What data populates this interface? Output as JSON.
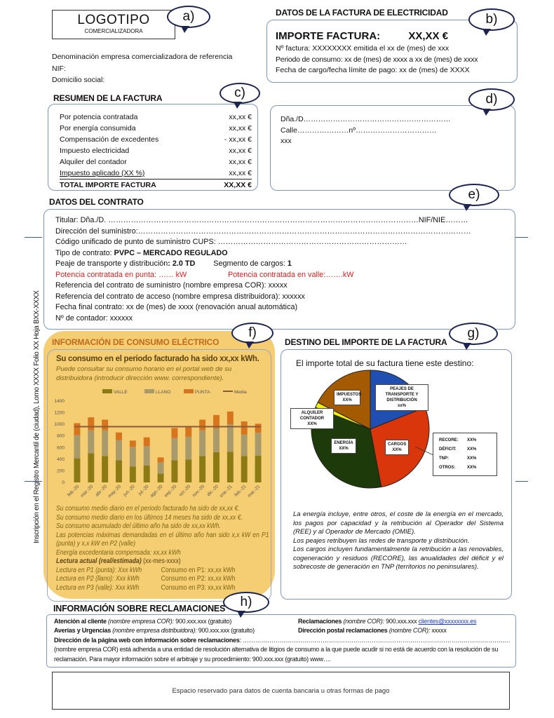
{
  "header": {
    "logo_title": "LOGOTIPO",
    "logo_subtitle": "COMERCIALIZADORA",
    "company_lines": [
      "Denominación empresa comercializadora de referencia",
      "NIF:",
      "Domicilio social:"
    ]
  },
  "callouts": [
    "a)",
    "b)",
    "c)",
    "d)",
    "e)",
    "f)",
    "g)",
    "h)"
  ],
  "invoice": {
    "section_title": "DATOS DE LA FACTURA DE ELECTRICIDAD",
    "amount_label": "IMPORTE FACTURA:",
    "amount_value": "XX,XX €",
    "lines": [
      "Nº factura: XXXXXXXX emitida el xx de (mes) de xxx",
      "Periodo de consumo: xx de (mes) de xxxx a xx de (mes) de xxxx",
      "Fecha de cargo/fecha límite de pago: xx de (mes) de XXXX"
    ]
  },
  "summary": {
    "section_title": "RESUMEN DE LA FACTURA",
    "rows": [
      {
        "label": "Por potencia contratada",
        "value": "xx,xx €"
      },
      {
        "label": "Por energía consumida",
        "value": "xx,xx €"
      },
      {
        "label": "Compensación de excedentes",
        "value": "- xx,xx €"
      },
      {
        "label": "Impuesto electricidad",
        "value": "xx,xx €"
      },
      {
        "label": "Alquiler del contador",
        "value": "xx,xx €"
      },
      {
        "label": "Impuesto aplicado (XX %)",
        "value": "xx,xx €"
      }
    ],
    "total_label": "TOTAL IMPORTE FACTURA",
    "total_value": "XX,XX €"
  },
  "address": {
    "lines": [
      "Dña./D……………………………………………………",
      "Calle…………………nº……………………………",
      "xxx"
    ]
  },
  "contract": {
    "section_title": "DATOS DEL CONTRATO",
    "titular": "Titular: Dña./D. ……………………………………………………………………………………………………………NIF/NIE………",
    "direccion": "Dirección del suministro:……………………………………………………………………………………………………………………",
    "cups": "Código unificado de punto de suministro CUPS: …………………………………………………………………",
    "tipo_label": "Tipo de contrato: ",
    "tipo_value": "PVPC – MERCADO REGULADO",
    "peaje_label": "Peaje de transporte y distribución",
    "peaje_value": ": 2.0 TD",
    "segmento_label": "Segmento de cargos: ",
    "segmento_value": "1",
    "potencia_punta": "Potencia contratada en punta: …… kW",
    "potencia_valle": "Potencia contratada en valle:…….kW",
    "ref_suministro": "Referencia del  contrato de suministro (nombre empresa COR): xxxxx",
    "ref_acceso": "Referencia del  contrato de acceso (nombre empresa distribuidora): xxxxxx",
    "fecha_final": "Fecha final contrato: xx de (mes) de xxxx (renovación anual automática)",
    "contador": "Nº de contador: xxxxxx"
  },
  "side_note": "Inscripción en el Registro Mercantil de (ciudad), Lomo XXXX  Folio XX Hoja BXX-XXXX",
  "consumption": {
    "section_title": "INFORMACIÓN DE CONSUMO ELÉCTRICO",
    "headline": "Su consumo en el periodo facturado ha sido xx,xx kWh.",
    "subline": "Puede consultar su consumo horario en el portal web de su distribuidora  (introducir dirección www. correspondiente).",
    "notes": [
      "Su consumo medio diario en el periodo facturado ha sido de xx,xx €.",
      "Su consumo medio diario en los últimos 14 meses ha sido de xx,xx €.",
      "Su consumo acumulado del último año ha sido de xx,xx kWh.",
      "Las potencias máximas demandadas en el último año han sido x,x kW en P1 (punta) y x,x kW en P2 (valle)",
      "Energía excedentaria compensada: xx,xx kWh"
    ],
    "reading_label": "Lectura actual (real/estimada)",
    "reading_date": " (xx-mes-xxxx)",
    "readings": [
      {
        "lectura": "Lectura en P1 (punta): Xxx kWh",
        "consumo": "Consumo en P1: xx,xx kWh"
      },
      {
        "lectura": "Lectura en P2 (llano): Xxx kWh",
        "consumo": "Consumo en P2: xx,xx kWh"
      },
      {
        "lectura": "Lectura en P3 (valle): Xxx kWh",
        "consumo": "Consumo en P3: xx,xx kWh"
      }
    ]
  },
  "destination": {
    "section_title": "DESTINO DEL IMPORTE DE LA FACTURA",
    "pie_title": "El importe total de su factura tiene este destino:",
    "cargos_breakdown": [
      {
        "label": "RECORE:",
        "value": "XX%"
      },
      {
        "label": "DÉFICIT:",
        "value": "XX%"
      },
      {
        "label": "TNP:",
        "value": "XX%"
      },
      {
        "label": "OTROS:",
        "value": "XX%"
      }
    ],
    "explanation": [
      "La energía incluye, entre otros, el coste de la energía en el mercado, los pagos por capacidad y la retribución al Operador del Sistema (REE) y al Operador de Mercado (OMIE).",
      "Los peajes retribuyen las redes de transporte y distribución.",
      "Los cargos incluyen fundamentalmente la retribución a las renovables, cogeneración y residuos (RECORE), las anualidades del déficit y el sobrecoste de generación en TNP (territorios no peninsulares)."
    ]
  },
  "claims": {
    "section_title": "INFORMACIÓN SOBRE RECLAMACIONES",
    "atencion_label": "Atención al cliente",
    "atencion_who": " (nombre empresa COR):",
    "atencion_value": "  900.xxx.xxx (gratuito)",
    "reclam_label": "Reclamaciones",
    "reclam_who": " (nombre COR):",
    "reclam_value": "  900.xxx.xxx  ",
    "reclam_email": "clientes@xxxxxxxx.es",
    "averias_label": "Averías y Urgencias",
    "averias_who": " (nombre empresa distribuidora):",
    "averias_value": "  900.xxx.xxx (gratuito)",
    "postal_label": "Dirección postal reclamaciones",
    "postal_who": " (nombre COR):",
    "postal_value": "  xxxxx",
    "web_label": "Dirección de la página web con información sobre reclamaciones",
    "web_value": ": ……………………………………………………………………………………………………………………………",
    "arbitraje": "(nombre empresa COR) está adherida a una entidad de resolución alternativa de litigios de consumo a la que puede acudir si no está de acuerdo con la resolución de su reclamación. Para mayor información sobre el arbitraje y su procedimiento: 900.xxx.xxx (gratuito)      www…."
  },
  "bank": {
    "text": "Espacio reservado para datos de cuenta bancaria u otras formas de pago"
  },
  "chart_data": [
    {
      "type": "bar",
      "stacked": true,
      "categories": [
        "feb.-20",
        "mar.-20",
        "abr.-20",
        "may.-20",
        "jun.-20",
        "jul.-20",
        "ago.-20",
        "sep.-20",
        "oct.-20",
        "nov.-20",
        "dic.-20",
        "ene.-21",
        "feb.-21",
        "mar.-21"
      ],
      "series": [
        {
          "name": "VALLE",
          "color": "#8c7a14",
          "values": [
            415,
            500,
            455,
            380,
            275,
            290,
            150,
            380,
            395,
            455,
            520,
            525,
            455,
            460
          ]
        },
        {
          "name": "LLANO",
          "color": "#a89a6a",
          "values": [
            400,
            400,
            445,
            345,
            340,
            335,
            195,
            385,
            390,
            445,
            410,
            475,
            370,
            395
          ]
        },
        {
          "name": "PUNTA",
          "color": "#d7741e",
          "values": [
            205,
            220,
            180,
            135,
            105,
            150,
            85,
            170,
            165,
            180,
            230,
            220,
            225,
            155
          ]
        },
        {
          "name": "Media",
          "type": "line",
          "color": "#8a5a3a",
          "values": [
            960,
            960,
            960,
            960,
            960,
            960,
            960,
            960,
            960,
            960,
            960,
            960,
            960,
            960
          ]
        }
      ],
      "ylim": [
        0,
        1400
      ],
      "yticks": [
        0,
        200,
        400,
        600,
        800,
        1000,
        1200,
        1400
      ],
      "legend": "top"
    },
    {
      "type": "pie",
      "title": "El importe total de su factura tiene este destino:",
      "slices": [
        {
          "label": "PEAJES DE TRANSPORTE Y DISTRIBUCIÓN",
          "value_label": "xx%",
          "share": 19,
          "color": "#1f4fb0"
        },
        {
          "label": "CARGOS",
          "value_label": "XX%",
          "share": 28,
          "color": "#d9360c"
        },
        {
          "label": "ENERGÍA",
          "value_label": "XX%",
          "share": 34,
          "color": "#1c3a0a"
        },
        {
          "label": "ALQUILER CONTADOR",
          "value_label": "XX%",
          "share": 1.5,
          "color": "#f2f200"
        },
        {
          "label": "IMPUESTOS",
          "value_label": "XX%",
          "share": 17.5,
          "color": "#a35a00"
        }
      ]
    }
  ]
}
